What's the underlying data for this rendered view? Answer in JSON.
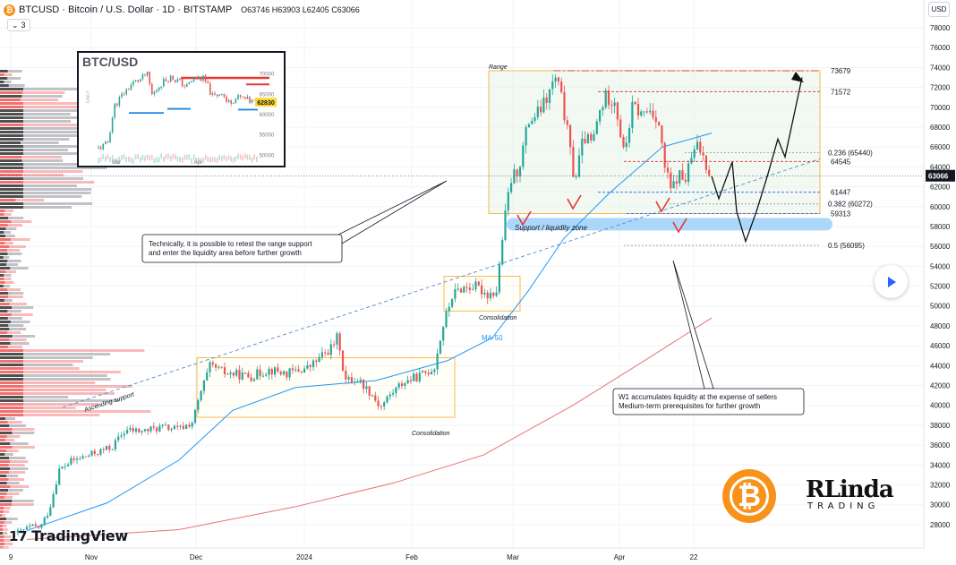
{
  "header": {
    "symbol_text": "BTCUSD · Bitcoin / U.S. Dollar · 1D · BITSTAMP",
    "ohlc": "O63746 H63903 L62405 C63066",
    "indicator_count": "3"
  },
  "axis": {
    "currency": "USD"
  },
  "branding": {
    "tradingview": "TradingView",
    "rlinda_top": "RLinda",
    "rlinda_bottom": "TRADING"
  },
  "inset": {
    "title": "BTC/USD",
    "timeframe": "DAILY",
    "y_ticks": [
      "70000",
      "65000",
      "60000",
      "55000",
      "50000"
    ],
    "x_ticks": [
      "Mar",
      "Apr"
    ],
    "last_price": "62830"
  },
  "annotations": {
    "range": "Range",
    "support_zone": "Support / liquidity zone",
    "consolidation_1": "Consolidation",
    "consolidation_2": "Consolidation",
    "ma50": "MA-50",
    "ascending_support": "Ascending support",
    "callout_1": [
      "Technically, it is possible to retest the range support",
      "and enter the liquidity area before further growth"
    ],
    "callout_2": [
      "W1 accumulates liquidity at the expense of sellers",
      "Medium-term prerequisites for further growth"
    ]
  },
  "chart_data": {
    "type": "candlestick",
    "symbol": "BTCUSD",
    "timeframe": "1D",
    "exchange": "BITSTAMP",
    "ohlc": {
      "open": 63746,
      "high": 63903,
      "low": 62405,
      "close": 63066
    },
    "y_ticks": [
      28000,
      30000,
      32000,
      34000,
      36000,
      38000,
      40000,
      42000,
      44000,
      46000,
      48000,
      50000,
      52000,
      54000,
      56000,
      58000,
      60000,
      62000,
      64000,
      66000,
      68000,
      70000,
      72000,
      74000,
      76000,
      78000
    ],
    "x_ticks": [
      "9",
      "Nov",
      "Dec",
      "2024",
      "Feb",
      "Mar",
      "Apr",
      "22"
    ],
    "current_price": 63066,
    "ylim": [
      26500,
      80200
    ],
    "price_levels": [
      {
        "label": "73679",
        "value": 73679,
        "color": "#d32f2f"
      },
      {
        "label": "71572",
        "value": 71572,
        "color": "#d32f2f"
      },
      {
        "label": "0.236 (65440)",
        "value": 65440,
        "color": "#9e9e9e"
      },
      {
        "label": "64545",
        "value": 64545,
        "color": "#d32f2f"
      },
      {
        "label": "61447",
        "value": 61447,
        "color": "#2962ff"
      },
      {
        "label": "0.382 (60272)",
        "value": 60272,
        "color": "#9e9e9e"
      },
      {
        "label": "59313",
        "value": 59313,
        "color": "#2962ff"
      },
      {
        "label": "0.5 (56095)",
        "value": 56095,
        "color": "#9e9e9e"
      }
    ],
    "key_closes": [
      {
        "date": "Oct 9",
        "value": 27600
      },
      {
        "date": "Nov 1",
        "value": 34500
      },
      {
        "date": "Dec 5",
        "value": 44000
      },
      {
        "date": "Jan 1",
        "value": 44200
      },
      {
        "date": "Jan 23",
        "value": 39500
      },
      {
        "date": "Feb 10",
        "value": 47500
      },
      {
        "date": "Feb 20",
        "value": 51500
      },
      {
        "date": "Feb 28",
        "value": 62000
      },
      {
        "date": "Mar 14",
        "value": 73679
      },
      {
        "date": "Apr 8",
        "value": 71572
      },
      {
        "date": "Apr 17",
        "value": 60500
      },
      {
        "date": "Apr 26",
        "value": 63066
      }
    ],
    "projection": [
      63066,
      60800,
      64500,
      59500,
      56500,
      59500,
      63000,
      66800,
      65000,
      73000
    ],
    "colors": {
      "up": "#26a69a",
      "down": "#ef5350",
      "ma50": "#2196f3",
      "ma200": "#e57373",
      "range_fill": "#e8f5e9",
      "range_border": "#f9a825",
      "zone": "#90caf9",
      "current": "#131722"
    }
  }
}
